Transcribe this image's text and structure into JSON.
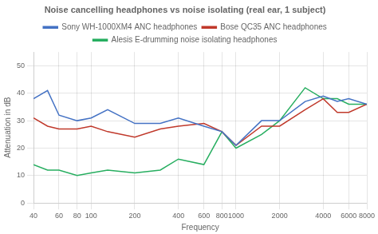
{
  "chart_data": {
    "type": "line",
    "title": "Noise cancelling headphones vs noise isolating (real ear, 1 subject)",
    "xlabel": "Frequency",
    "ylabel": "Attenuation in dB",
    "x": [
      40,
      50,
      60,
      80,
      100,
      130,
      200,
      300,
      400,
      600,
      800,
      1000,
      1500,
      2000,
      3000,
      4000,
      5000,
      6000,
      8000
    ],
    "series": [
      {
        "name": "Sony WH-1000XM4 ANC headphones",
        "color": "#4472c4",
        "values": [
          38,
          41,
          32,
          30,
          31,
          34,
          29,
          29,
          31,
          28,
          26,
          21,
          30,
          30,
          37,
          39,
          37,
          38,
          36
        ]
      },
      {
        "name": "Bose QC35 ANC headphones",
        "color": "#c0392b",
        "values": [
          31,
          28,
          27,
          27,
          28,
          26,
          24,
          27,
          28,
          29,
          26,
          21,
          28,
          28,
          34,
          38,
          33,
          33,
          36
        ]
      },
      {
        "name": "Alesis E-drumming noise isolating headphones",
        "color": "#27ae60",
        "values": [
          14,
          12,
          12,
          10,
          11,
          12,
          11,
          12,
          16,
          14,
          26,
          20,
          25,
          30,
          42,
          38,
          38,
          36,
          36
        ]
      }
    ],
    "log": "x",
    "xlim": [
      40,
      8000
    ],
    "xticks": [
      40,
      60,
      80,
      100,
      200,
      400,
      600,
      800,
      1000,
      2000,
      4000,
      6000,
      8000
    ],
    "ylim": [
      0,
      55
    ],
    "yticks": [
      0,
      10,
      20,
      30,
      40,
      50
    ],
    "grid": true,
    "legend": "top"
  }
}
